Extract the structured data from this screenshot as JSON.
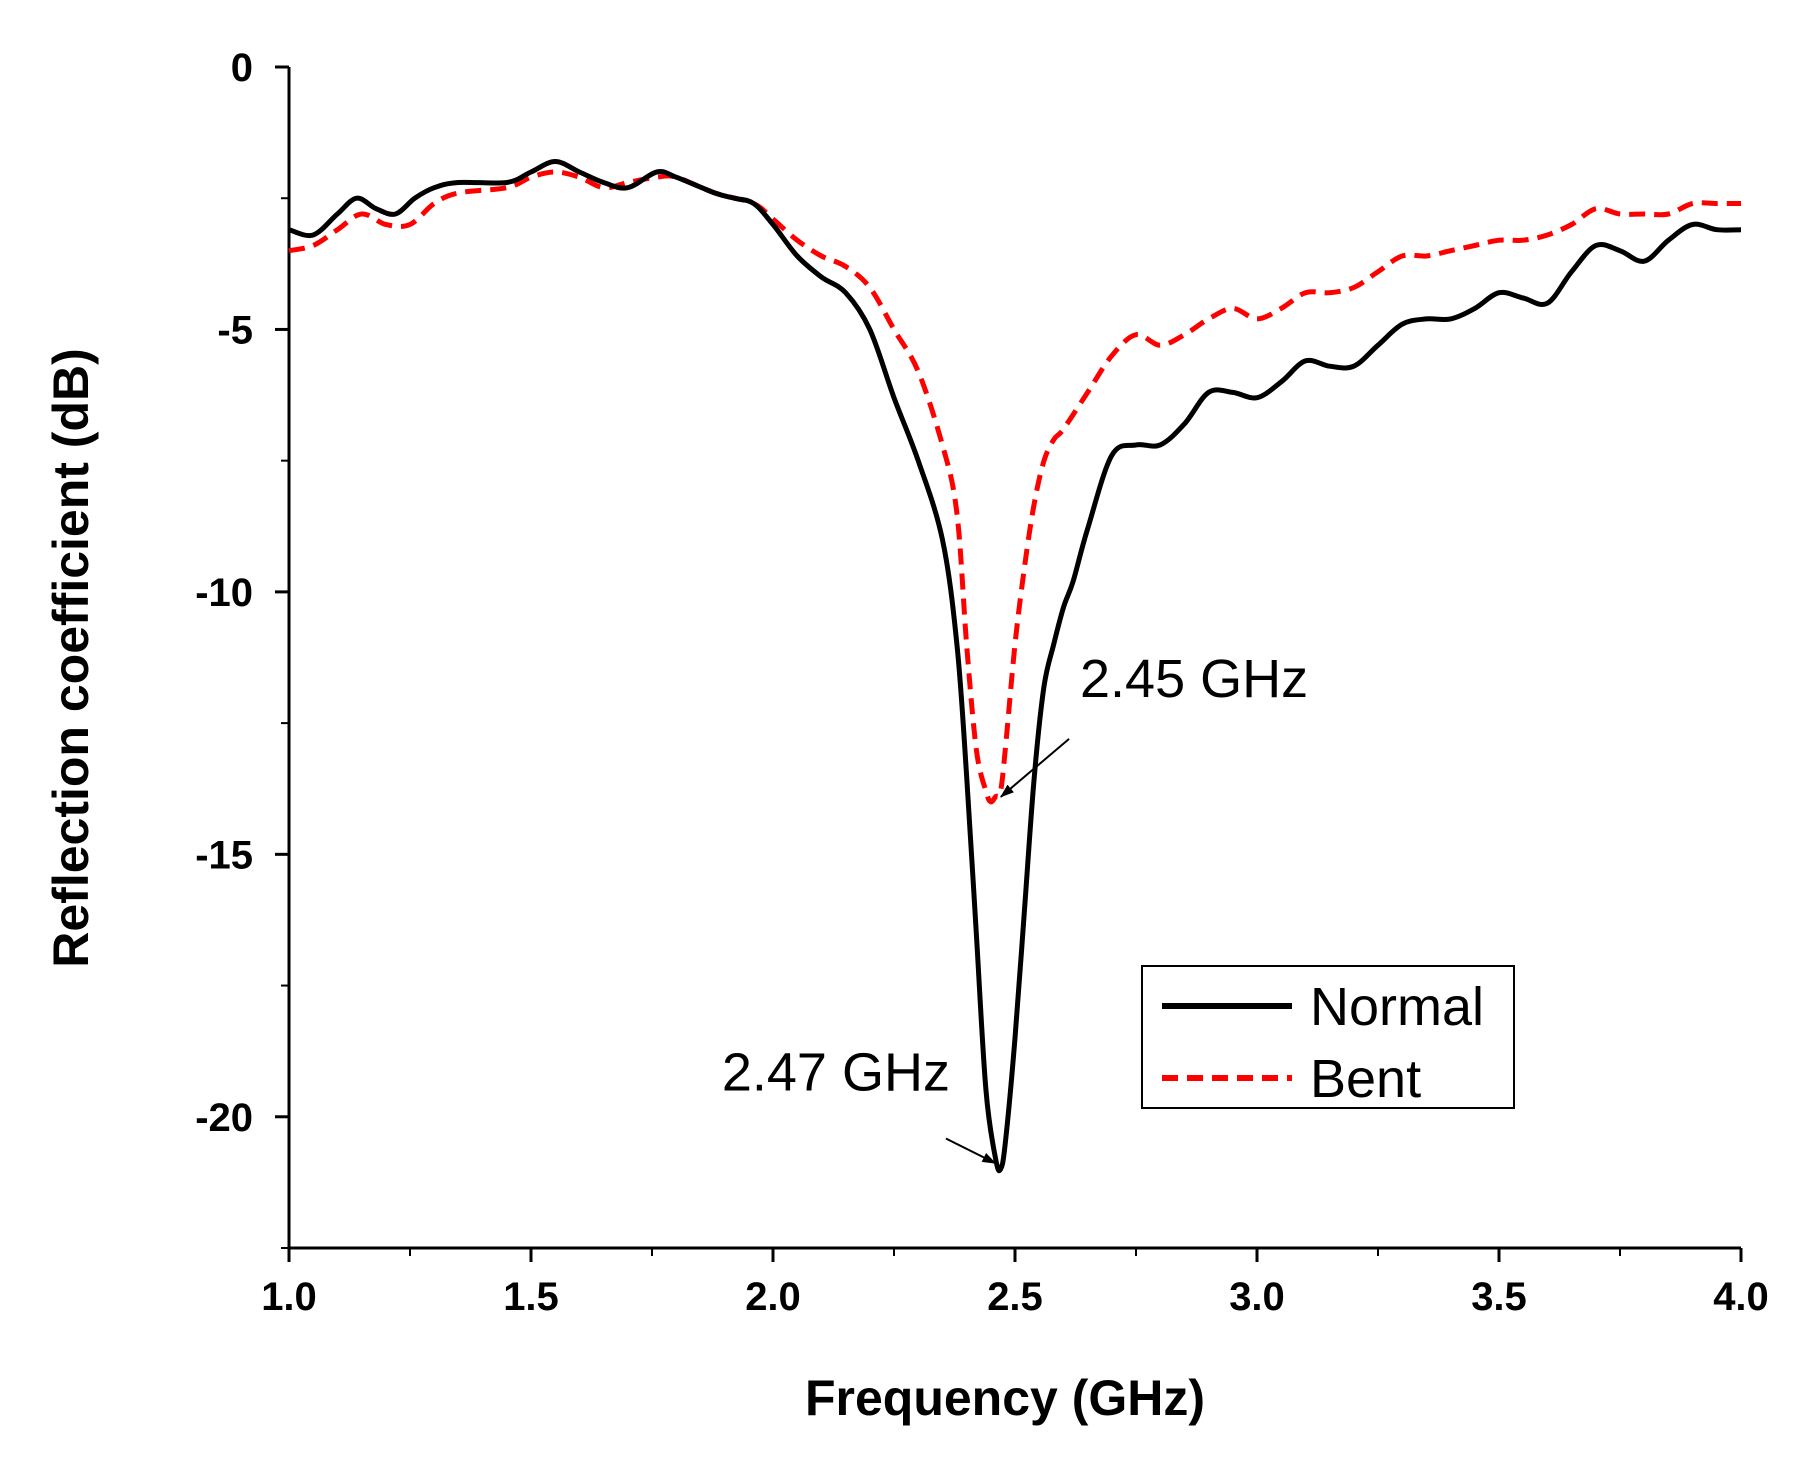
{
  "chart_data": {
    "type": "line",
    "title": "",
    "xlabel": "Frequency (GHz)",
    "ylabel": "Reflection coefficient (dB)",
    "xlim": [
      1.0,
      4.0
    ],
    "ylim": [
      -22.5,
      0
    ],
    "xticks": [
      1.0,
      1.5,
      2.0,
      2.5,
      3.0,
      3.5,
      4.0
    ],
    "xtick_labels": [
      "1.0",
      "1.5",
      "2.0",
      "2.5",
      "3.0",
      "3.5",
      "4.0"
    ],
    "yticks": [
      0,
      -5,
      -10,
      -15,
      -20
    ],
    "ytick_labels": [
      "0",
      "-5",
      "-10",
      "-15",
      "-20"
    ],
    "grid": false,
    "legend_position": "bottom-right",
    "series": [
      {
        "name": "Normal",
        "color": "#000000",
        "style": "solid",
        "x": [
          1.0,
          1.05,
          1.1,
          1.14,
          1.18,
          1.22,
          1.26,
          1.3,
          1.35,
          1.45,
          1.5,
          1.55,
          1.6,
          1.65,
          1.7,
          1.76,
          1.8,
          1.88,
          1.92,
          1.96,
          2.0,
          2.05,
          2.1,
          2.15,
          2.2,
          2.25,
          2.3,
          2.35,
          2.38,
          2.4,
          2.42,
          2.44,
          2.46,
          2.47,
          2.48,
          2.5,
          2.52,
          2.54,
          2.56,
          2.58,
          2.6,
          2.62,
          2.65,
          2.7,
          2.75,
          2.8,
          2.85,
          2.9,
          2.95,
          3.0,
          3.05,
          3.1,
          3.15,
          3.2,
          3.25,
          3.3,
          3.35,
          3.4,
          3.45,
          3.5,
          3.55,
          3.6,
          3.65,
          3.7,
          3.75,
          3.8,
          3.85,
          3.9,
          3.95,
          4.0
        ],
        "y": [
          -3.1,
          -3.2,
          -2.8,
          -2.5,
          -2.7,
          -2.8,
          -2.5,
          -2.3,
          -2.2,
          -2.2,
          -2.0,
          -1.8,
          -2.0,
          -2.2,
          -2.3,
          -2.0,
          -2.1,
          -2.4,
          -2.5,
          -2.6,
          -3.0,
          -3.6,
          -4.0,
          -4.3,
          -5.0,
          -6.3,
          -7.5,
          -9.0,
          -11.0,
          -13.5,
          -16.5,
          -19.5,
          -20.8,
          -21.0,
          -20.5,
          -18.5,
          -16.0,
          -13.5,
          -11.8,
          -11.0,
          -10.3,
          -9.8,
          -8.8,
          -7.4,
          -7.2,
          -7.2,
          -6.8,
          -6.2,
          -6.2,
          -6.3,
          -6.0,
          -5.6,
          -5.7,
          -5.7,
          -5.3,
          -4.9,
          -4.8,
          -4.8,
          -4.6,
          -4.3,
          -4.4,
          -4.5,
          -3.9,
          -3.4,
          -3.5,
          -3.7,
          -3.3,
          -3.0,
          -3.1,
          -3.1
        ]
      },
      {
        "name": "Bent",
        "color": "#ff0000",
        "style": "dashed",
        "x": [
          1.0,
          1.05,
          1.1,
          1.15,
          1.2,
          1.25,
          1.3,
          1.35,
          1.45,
          1.5,
          1.55,
          1.6,
          1.65,
          1.7,
          1.76,
          1.8,
          1.88,
          1.96,
          2.0,
          2.05,
          2.1,
          2.15,
          2.2,
          2.25,
          2.3,
          2.35,
          2.38,
          2.4,
          2.42,
          2.44,
          2.45,
          2.46,
          2.47,
          2.48,
          2.5,
          2.52,
          2.54,
          2.56,
          2.58,
          2.6,
          2.65,
          2.7,
          2.75,
          2.8,
          2.85,
          2.9,
          2.95,
          3.0,
          3.05,
          3.1,
          3.15,
          3.2,
          3.25,
          3.3,
          3.35,
          3.4,
          3.45,
          3.5,
          3.55,
          3.6,
          3.65,
          3.7,
          3.75,
          3.8,
          3.85,
          3.9,
          3.95,
          4.0
        ],
        "y": [
          -3.5,
          -3.4,
          -3.1,
          -2.8,
          -3.0,
          -3.0,
          -2.6,
          -2.4,
          -2.3,
          -2.1,
          -2.0,
          -2.1,
          -2.3,
          -2.2,
          -2.1,
          -2.1,
          -2.4,
          -2.6,
          -2.9,
          -3.3,
          -3.6,
          -3.8,
          -4.2,
          -5.0,
          -5.8,
          -7.2,
          -8.5,
          -11.0,
          -13.0,
          -13.8,
          -14.0,
          -13.9,
          -13.8,
          -13.0,
          -11.0,
          -9.5,
          -8.3,
          -7.5,
          -7.1,
          -6.9,
          -6.2,
          -5.5,
          -5.1,
          -5.3,
          -5.1,
          -4.8,
          -4.6,
          -4.8,
          -4.6,
          -4.3,
          -4.3,
          -4.2,
          -3.9,
          -3.6,
          -3.6,
          -3.5,
          -3.4,
          -3.3,
          -3.3,
          -3.2,
          -3.0,
          -2.7,
          -2.8,
          -2.8,
          -2.8,
          -2.6,
          -2.6,
          -2.6
        ]
      }
    ],
    "annotations": [
      {
        "text": "2.45 GHz",
        "x": 2.45,
        "y": -14.0,
        "text_x": 2.87,
        "text_y": -12.0
      },
      {
        "text": "2.47 GHz",
        "x": 2.47,
        "y": -21.0,
        "text_x": 2.13,
        "text_y": -19.5
      }
    ]
  }
}
